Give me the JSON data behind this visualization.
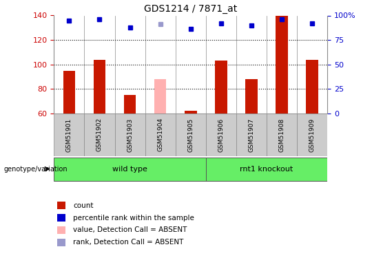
{
  "title": "GDS1214 / 7871_at",
  "samples": [
    "GSM51901",
    "GSM51902",
    "GSM51903",
    "GSM51904",
    "GSM51905",
    "GSM51906",
    "GSM51907",
    "GSM51908",
    "GSM51909"
  ],
  "count_values": [
    95,
    104,
    75,
    null,
    62,
    103,
    88,
    140,
    104
  ],
  "rank_values": [
    95,
    96,
    88,
    null,
    86,
    92,
    90,
    96,
    92
  ],
  "absent_value_bar": [
    null,
    null,
    null,
    88,
    null,
    null,
    null,
    null,
    null
  ],
  "absent_rank_dot": [
    null,
    null,
    null,
    91,
    null,
    null,
    null,
    null,
    null
  ],
  "ylim_left": [
    60,
    140
  ],
  "ylim_right": [
    0,
    100
  ],
  "yticks_left": [
    60,
    80,
    100,
    120,
    140
  ],
  "yticks_right": [
    0,
    25,
    50,
    75,
    100
  ],
  "ytick_right_labels": [
    "0",
    "25",
    "50",
    "75",
    "100%"
  ],
  "hgrid_lines": [
    80,
    100,
    120
  ],
  "bar_color_red": "#c81800",
  "bar_color_pink": "#ffb0b0",
  "dot_color_blue": "#0000cc",
  "dot_color_lightblue": "#9999cc",
  "bar_width": 0.4,
  "tick_color_left": "#cc0000",
  "tick_color_right": "#0000cc",
  "col_bg_color": "#cccccc",
  "col_border_color": "#888888",
  "group_bg_color": "#66ee66",
  "group_border_color": "#555555",
  "wild_type_indices": [
    0,
    4
  ],
  "rnt1_indices": [
    5,
    8
  ],
  "wild_type_label": "wild type",
  "rnt1_label": "rnt1 knockout",
  "genotype_label": "genotype/variation",
  "legend_items": [
    {
      "label": "count",
      "color": "#c81800"
    },
    {
      "label": "percentile rank within the sample",
      "color": "#0000cc"
    },
    {
      "label": "value, Detection Call = ABSENT",
      "color": "#ffb0b0"
    },
    {
      "label": "rank, Detection Call = ABSENT",
      "color": "#9999cc"
    }
  ]
}
